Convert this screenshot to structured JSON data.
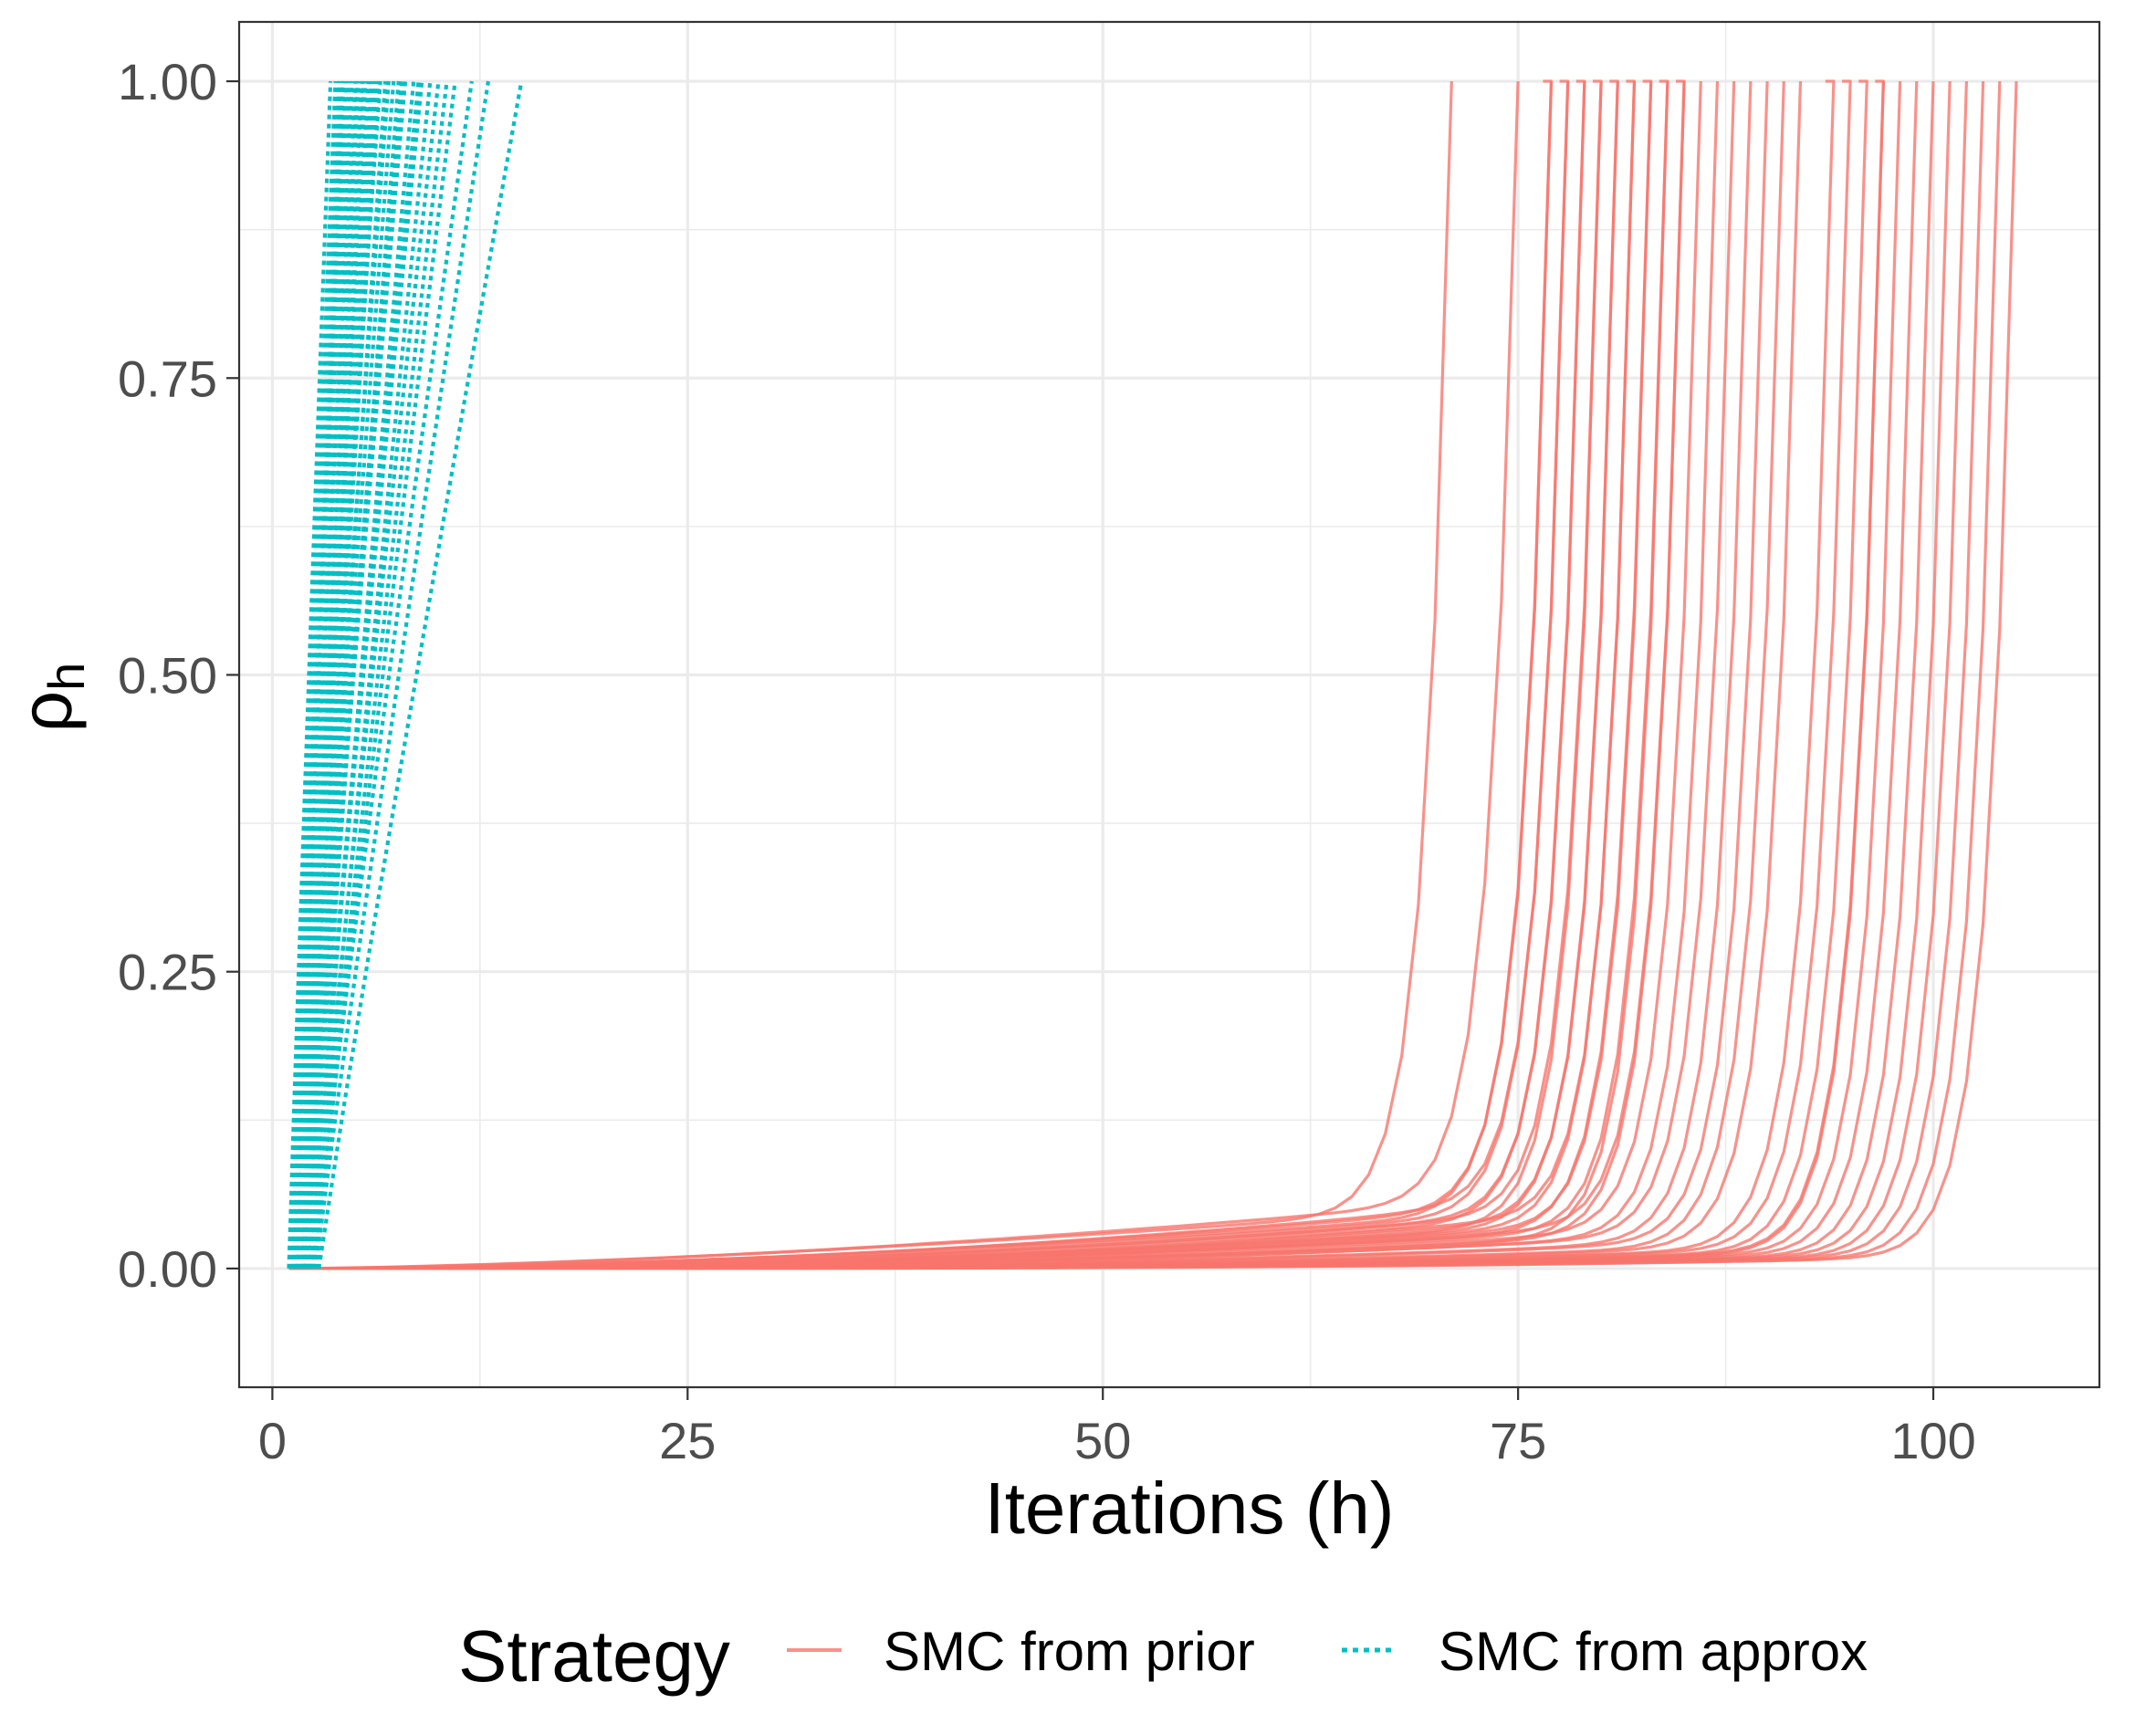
{
  "chart_data": {
    "type": "line",
    "title": "",
    "xlabel": "Iterations (h)",
    "ylabel": "ρh",
    "ylabel_main": "ρ",
    "ylabel_sub": "h",
    "xlim": [
      -2,
      110
    ],
    "ylim": [
      -0.1,
      1.05
    ],
    "grid": true,
    "x_ticks": [
      0,
      25,
      50,
      75,
      100
    ],
    "x_tick_labels": [
      "0",
      "25",
      "50",
      "75",
      "100"
    ],
    "y_ticks": [
      0,
      0.25,
      0.5,
      0.75,
      1.0
    ],
    "y_tick_labels": [
      "0.00",
      "0.25",
      "0.50",
      "0.75",
      "1.00"
    ],
    "legend": {
      "title": "Strategy",
      "position": "bottom",
      "entries": [
        {
          "label": "SMC from prior",
          "color": "#F8766D",
          "linestyle": "solid"
        },
        {
          "label": "SMC from approx",
          "color": "#00BFC4",
          "linestyle": "dotted"
        }
      ]
    },
    "series": [
      {
        "name": "SMC from prior",
        "color": "#F8766D",
        "linestyle": "solid",
        "description": "approx. 50 independent runs; rho stays near 0 then rises sharply to 1",
        "runs": [
          {
            "end": 71,
            "base": 0.05,
            "exp": 0.5
          },
          {
            "end": 75,
            "base": 0.06,
            "exp": 0.6
          },
          {
            "end": 76.5,
            "base": 0.05,
            "exp": 0.7
          },
          {
            "end": 77,
            "base": 0.055,
            "exp": 0.8
          },
          {
            "end": 77.5,
            "base": 0.06,
            "exp": 0.9
          },
          {
            "end": 78,
            "base": 0.05,
            "exp": 0.8
          },
          {
            "end": 78.5,
            "base": 0.045,
            "exp": 0.9
          },
          {
            "end": 79,
            "base": 0.05,
            "exp": 1.0
          },
          {
            "end": 79.5,
            "base": 0.04,
            "exp": 1.0
          },
          {
            "end": 80,
            "base": 0.05,
            "exp": 0.9
          },
          {
            "end": 80.5,
            "base": 0.045,
            "exp": 1.1
          },
          {
            "end": 81,
            "base": 0.04,
            "exp": 1.0
          },
          {
            "end": 81.5,
            "base": 0.05,
            "exp": 1.2
          },
          {
            "end": 82,
            "base": 0.04,
            "exp": 1.1
          },
          {
            "end": 82.5,
            "base": 0.035,
            "exp": 1.0
          },
          {
            "end": 83,
            "base": 0.04,
            "exp": 1.2
          },
          {
            "end": 83.5,
            "base": 0.035,
            "exp": 1.1
          },
          {
            "end": 84,
            "base": 0.03,
            "exp": 1.3
          },
          {
            "end": 84.5,
            "base": 0.04,
            "exp": 1.2
          },
          {
            "end": 85,
            "base": 0.03,
            "exp": 1.2
          },
          {
            "end": 86,
            "base": 0.035,
            "exp": 1.3
          },
          {
            "end": 87,
            "base": 0.03,
            "exp": 1.4
          },
          {
            "end": 88,
            "base": 0.03,
            "exp": 1.3
          },
          {
            "end": 89,
            "base": 0.025,
            "exp": 1.4
          },
          {
            "end": 90,
            "base": 0.025,
            "exp": 1.5
          },
          {
            "end": 91,
            "base": 0.02,
            "exp": 1.4
          },
          {
            "end": 92,
            "base": 0.02,
            "exp": 1.6
          },
          {
            "end": 93.5,
            "base": 0.018,
            "exp": 1.6
          },
          {
            "end": 94.5,
            "base": 0.018,
            "exp": 1.7
          },
          {
            "end": 95.5,
            "base": 0.016,
            "exp": 1.8
          },
          {
            "end": 96.5,
            "base": 0.016,
            "exp": 1.8
          },
          {
            "end": 97,
            "base": 0.015,
            "exp": 1.9
          },
          {
            "end": 98,
            "base": 0.015,
            "exp": 2.0
          },
          {
            "end": 99,
            "base": 0.014,
            "exp": 2.0
          },
          {
            "end": 100,
            "base": 0.013,
            "exp": 2.1
          },
          {
            "end": 101,
            "base": 0.013,
            "exp": 2.2
          },
          {
            "end": 102,
            "base": 0.012,
            "exp": 2.2
          },
          {
            "end": 103,
            "base": 0.012,
            "exp": 2.3
          },
          {
            "end": 104,
            "base": 0.011,
            "exp": 2.4
          },
          {
            "end": 105,
            "base": 0.011,
            "exp": 2.5
          }
        ]
      },
      {
        "name": "SMC from approx",
        "color": "#00BFC4",
        "linestyle": "dotted",
        "description": "approx. 45 independent runs; rho rises nearly linearly from 0 to 1 within 3-15 iterations",
        "runs": [
          {
            "start": 1,
            "end": 3.5
          },
          {
            "start": 1,
            "end": 3.8
          },
          {
            "start": 1.2,
            "end": 4.0
          },
          {
            "start": 1.5,
            "end": 4.2
          },
          {
            "start": 1,
            "end": 4.4
          },
          {
            "start": 1.3,
            "end": 4.6
          },
          {
            "start": 1.6,
            "end": 4.8
          },
          {
            "start": 1.2,
            "end": 5.0
          },
          {
            "start": 1.8,
            "end": 5.2
          },
          {
            "start": 1.4,
            "end": 5.4
          },
          {
            "start": 2.0,
            "end": 5.6
          },
          {
            "start": 1.5,
            "end": 5.8
          },
          {
            "start": 1.8,
            "end": 6.0
          },
          {
            "start": 2.0,
            "end": 6.2
          },
          {
            "start": 1.6,
            "end": 6.5
          },
          {
            "start": 2.2,
            "end": 6.8
          },
          {
            "start": 1.8,
            "end": 7.0
          },
          {
            "start": 2.0,
            "end": 7.3
          },
          {
            "start": 2.3,
            "end": 7.6
          },
          {
            "start": 2.0,
            "end": 8.0
          },
          {
            "start": 2.4,
            "end": 8.5
          },
          {
            "start": 2.2,
            "end": 9.0
          },
          {
            "start": 2.5,
            "end": 9.5
          },
          {
            "start": 2.3,
            "end": 10.0
          },
          {
            "start": 2.5,
            "end": 10.5
          },
          {
            "start": 2.6,
            "end": 11.0
          },
          {
            "start": 2.4,
            "end": 12.0
          },
          {
            "start": 2.6,
            "end": 13.0
          },
          {
            "start": 2.8,
            "end": 15.0
          },
          {
            "start": 1.5,
            "end": 4.3
          },
          {
            "start": 1.7,
            "end": 5.1
          },
          {
            "start": 1.9,
            "end": 5.5
          },
          {
            "start": 2.1,
            "end": 6.4
          },
          {
            "start": 1.3,
            "end": 4.1
          },
          {
            "start": 1.9,
            "end": 7.8
          },
          {
            "start": 2.2,
            "end": 8.8
          }
        ]
      }
    ]
  }
}
